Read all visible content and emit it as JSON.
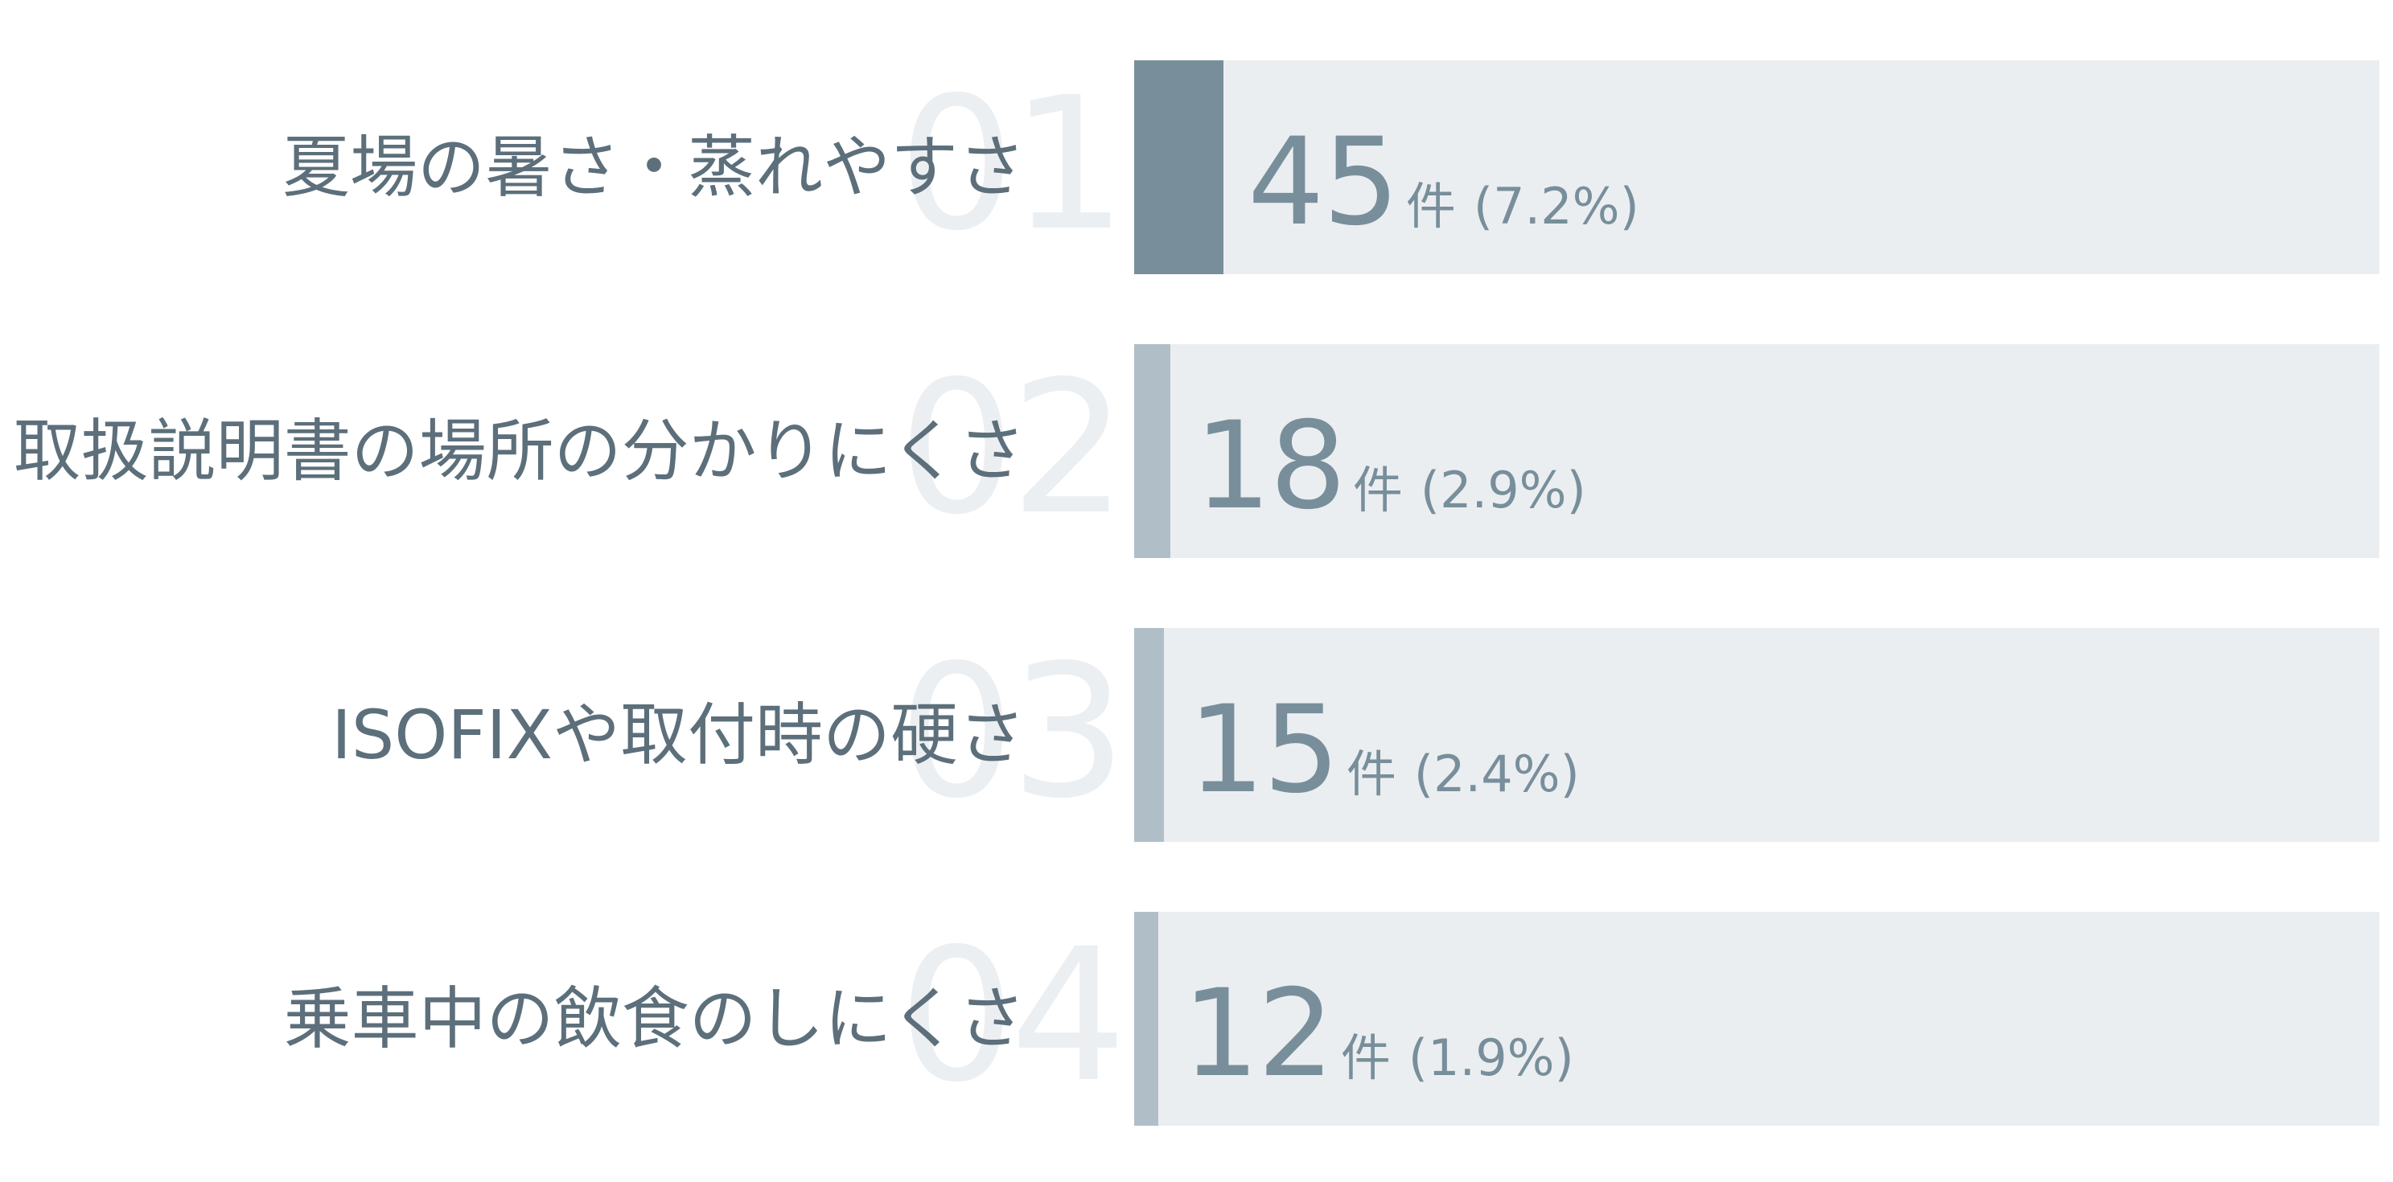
{
  "chart_data": {
    "type": "bar",
    "orientation": "horizontal",
    "max_count": 625,
    "items": [
      {
        "rank": "01",
        "label": "夏場の暑さ・蒸れやすさ",
        "value": 45,
        "unit": "件",
        "percent_text": "(7.2%)",
        "percent": 7.2,
        "highlight": true
      },
      {
        "rank": "02",
        "label": "取扱説明書の場所の分かりにくさ",
        "value": 18,
        "unit": "件",
        "percent_text": "(2.9%)",
        "percent": 2.9,
        "highlight": false
      },
      {
        "rank": "03",
        "label": "ISOFIXや取付時の硬さ",
        "value": 15,
        "unit": "件",
        "percent_text": "(2.4%)",
        "percent": 2.4,
        "highlight": false
      },
      {
        "rank": "04",
        "label": "乗車中の飲食のしにくさ",
        "value": 12,
        "unit": "件",
        "percent_text": "(1.9%)",
        "percent": 1.9,
        "highlight": false
      }
    ],
    "colors": {
      "track": "#ebeef1",
      "bar_highlight": "#788f9b",
      "bar_normal": "#b0bfc7",
      "label_text": "#5c6f7b",
      "value_text": "#788f9b",
      "rank_text": "#eceff2"
    }
  }
}
